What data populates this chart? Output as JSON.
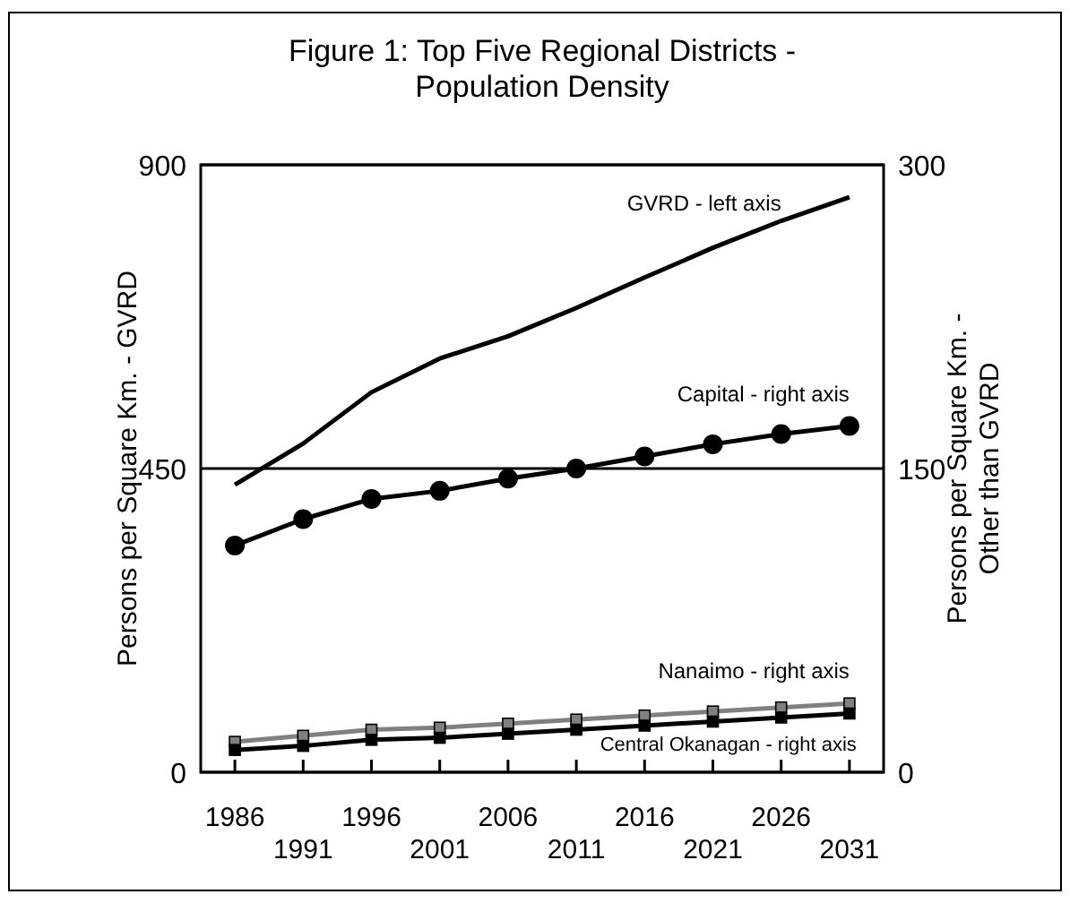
{
  "chart_data": {
    "type": "line",
    "title": "Figure 1: Top Five Regional Districts -\nPopulation Density",
    "ylabel": "Persons per Square Km. - GVRD",
    "y2label": "Persons per Square Km. -\nOther than GVRD",
    "categories": [
      "1986",
      "1991",
      "1996",
      "2001",
      "2006",
      "2011",
      "2016",
      "2021",
      "2026",
      "2031"
    ],
    "ylim": [
      0,
      900
    ],
    "yticks": [
      0,
      450,
      900
    ],
    "y2lim": [
      0,
      300
    ],
    "y2ticks": [
      0,
      150,
      300
    ],
    "grid": "y",
    "series": [
      {
        "name": "GVRD - left axis",
        "color": "#000000",
        "marker": "none",
        "values": [
          426,
          487,
          563,
          613,
          646,
          688,
          733,
          777,
          817,
          852
        ]
      },
      {
        "name": "Capital - right axis",
        "color": "#000000",
        "marker": "circle",
        "axis": "y2",
        "values": [
          112,
          125,
          135,
          139,
          145,
          150,
          156,
          162,
          167,
          171
        ]
      },
      {
        "name": "Nanaimo - right axis",
        "color": "#808080",
        "marker": "square",
        "axis": "y2",
        "values": [
          15,
          18,
          21,
          22,
          24,
          26,
          28,
          30,
          32,
          34
        ]
      },
      {
        "name": "Central Okanagan - right axis",
        "color": "#000000",
        "marker": "square",
        "axis": "y2",
        "values": [
          11,
          13,
          16,
          17,
          19,
          21,
          23,
          25,
          27,
          29
        ]
      }
    ]
  }
}
